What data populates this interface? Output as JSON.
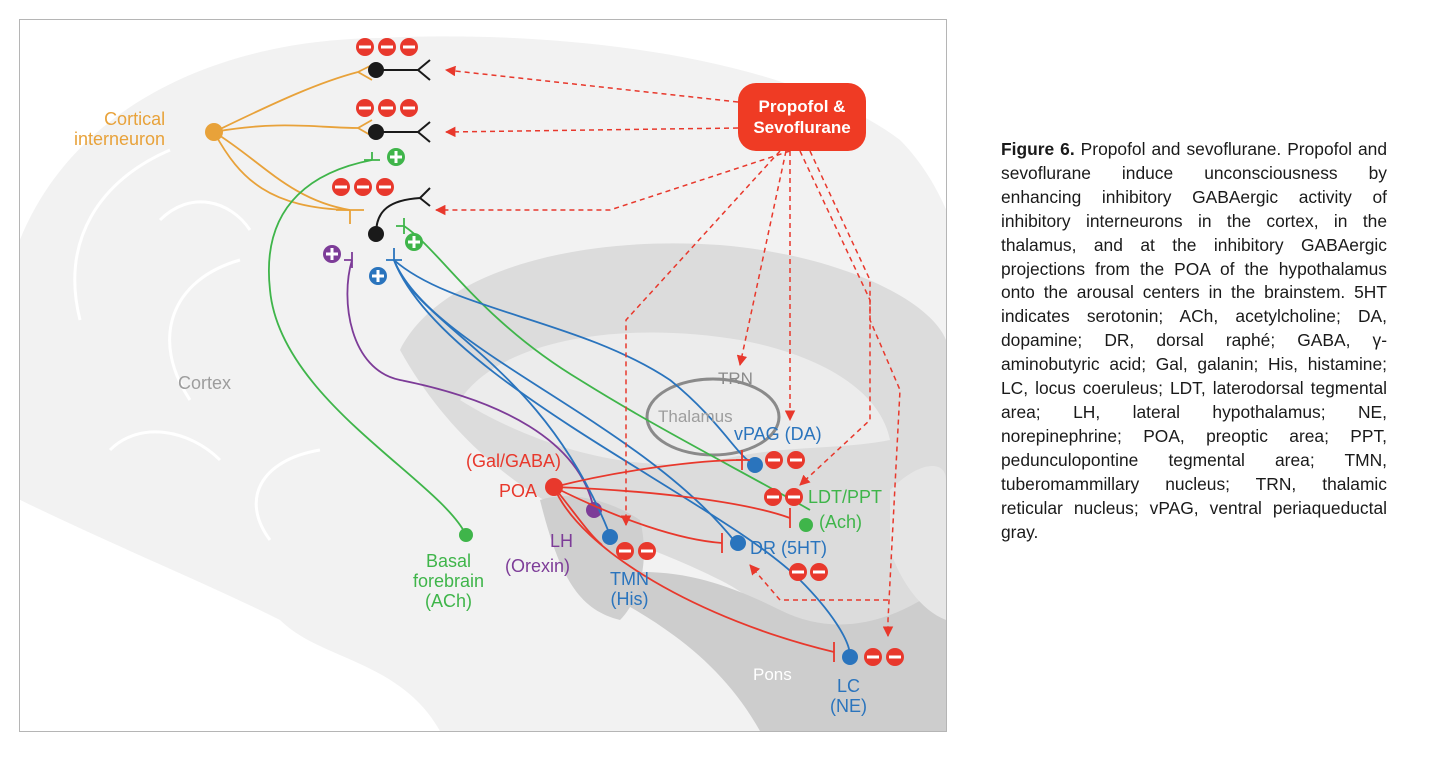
{
  "figure": {
    "drug_label_line1": "Propofol &",
    "drug_label_line2": "Sevoflurane",
    "labels": {
      "cortical_line1": "Cortical",
      "cortical_line2": "interneuron",
      "cortex": "Cortex",
      "trn": "TRN",
      "thalamus": "Thalamus",
      "vpag": "vPAG (DA)",
      "gal_gaba": "(Gal/GABA)",
      "poa": "POA",
      "ldt_ppt": "LDT/PPT",
      "ach_paren": "(Ach)",
      "lh": "LH",
      "orexin": "(Orexin)",
      "tmn": "TMN",
      "his": "(His)",
      "dr": "DR (5HT)",
      "basal_line1": "Basal",
      "basal_line2": "forebrain",
      "basal_line3": "(ACh)",
      "pons": "Pons",
      "lc": "LC",
      "ne": "(NE)"
    },
    "signs": {
      "minus": "−",
      "plus": "+"
    },
    "colors": {
      "orange": "#e8a23a",
      "green": "#3fb54a",
      "blue": "#2a74bd",
      "red": "#e8382c",
      "purple": "#7d3c98",
      "black": "#1a1a1a",
      "brain_grey": "#d9d9d9"
    }
  },
  "caption": {
    "heading": "Figure 6.",
    "text": "Propofol and sevoflurane. Propofol and sevoflurane induce unconsciousness by enhancing inhibitory GABAergic activity of inhibitory interneurons in the cortex, in the thalamus, and at the inhibitory GABAergic projections from the POA of the hypothalamus onto the arousal centers in the brainstem. 5HT indicates serotonin; ACh, acetylcholine; DA, dopamine; DR, dorsal raphé; GABA, γ-aminobutyric acid; Gal, galanin; His, histamine; LC, locus coeruleus; LDT, laterodorsal tegmental area; LH, lateral hypothalamus; NE, norepinephrine; POA, preoptic area; PPT, pedunculopontine tegmental area; TMN, tuberomammillary nucleus; TRN, thalamic reticular nucleus; vPAG, ventral periaqueductal gray."
  }
}
